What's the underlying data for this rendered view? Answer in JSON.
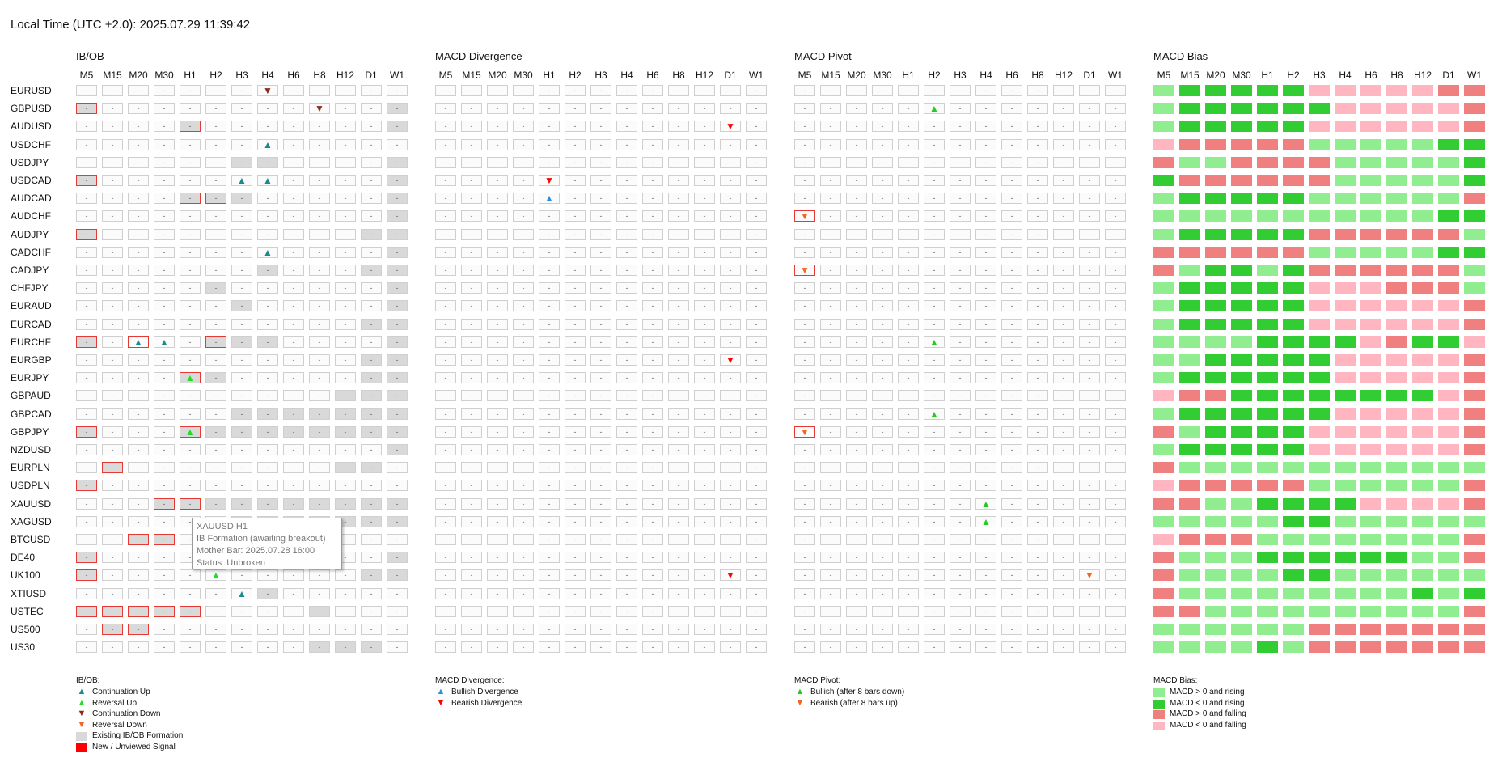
{
  "local_time": "Local Time (UTC +2.0): 2025.07.29 11:39:42",
  "timeframes": [
    "M5",
    "M15",
    "M20",
    "M30",
    "H1",
    "H2",
    "H3",
    "H4",
    "H6",
    "H8",
    "H12",
    "D1",
    "W1"
  ],
  "symbols": [
    "EURUSD",
    "GBPUSD",
    "AUDUSD",
    "USDCHF",
    "USDJPY",
    "USDCAD",
    "AUDCAD",
    "AUDCHF",
    "AUDJPY",
    "CADCHF",
    "CADJPY",
    "CHFJPY",
    "EURAUD",
    "EURCAD",
    "EURCHF",
    "EURGBP",
    "EURJPY",
    "GBPAUD",
    "GBPCAD",
    "GBPJPY",
    "NZDUSD",
    "EURPLN",
    "USDPLN",
    "XAUUSD",
    "XAGUSD",
    "BTCUSD",
    "DE40",
    "UK100",
    "XTIUSD",
    "USTEC",
    "US500",
    "US30"
  ],
  "colors": {
    "continuation_up": "#1a8a8a",
    "reversal_up": "#22dd22",
    "continuation_down": "#8b2a1f",
    "reversal_down": "#f26522",
    "bullish_divergence": "#2a8fe0",
    "bearish_divergence": "#ff0000",
    "pivot_bullish": "#22cc22",
    "pivot_bearish": "#f26522",
    "existing_formation": "#d9d9d9",
    "new_signal": "#ff0000",
    "bias_above_rising": "#90ee90",
    "bias_below_rising": "#32cd32",
    "bias_above_falling": "#f08080",
    "bias_below_falling": "#ffb6c1"
  },
  "panels": {
    "ibob": {
      "title": "IB/OB",
      "gray": [
        "1:0",
        "1:12",
        "2:4",
        "2:12",
        "4:6",
        "4:7",
        "4:12",
        "5:0",
        "5:12",
        "6:4",
        "6:5",
        "6:6",
        "6:12",
        "7:12",
        "8:0",
        "8:11",
        "8:12",
        "9:12",
        "10:7",
        "10:11",
        "10:12",
        "11:5",
        "11:12",
        "12:6",
        "12:12",
        "13:11",
        "13:12",
        "14:0",
        "14:5",
        "14:6",
        "14:7",
        "14:12",
        "15:11",
        "15:12",
        "16:4",
        "16:5",
        "16:11",
        "16:12",
        "17:10",
        "17:11",
        "17:12",
        "18:6",
        "18:7",
        "18:8",
        "18:9",
        "18:10",
        "18:11",
        "18:12",
        "19:0",
        "19:4",
        "19:5",
        "19:6",
        "19:7",
        "19:8",
        "19:9",
        "19:10",
        "19:11",
        "19:12",
        "20:12",
        "21:1",
        "21:10",
        "21:11",
        "22:0",
        "23:3",
        "23:4",
        "23:5",
        "23:6",
        "23:7",
        "23:8",
        "23:9",
        "23:10",
        "23:11",
        "23:12",
        "24:6",
        "24:7",
        "24:8",
        "24:9",
        "24:10",
        "24:11",
        "24:12",
        "25:2",
        "25:3",
        "26:0",
        "26:12",
        "27:0",
        "27:11",
        "27:12",
        "28:7",
        "29:0",
        "29:1",
        "29:2",
        "29:3",
        "29:4",
        "29:9",
        "30:1",
        "30:2",
        "31:9",
        "31:10",
        "31:11"
      ],
      "outline": [
        "1:0",
        "2:4",
        "5:0",
        "6:4",
        "6:5",
        "8:0",
        "14:0",
        "14:2",
        "14:5",
        "16:4",
        "19:0",
        "19:4",
        "21:1",
        "22:0",
        "23:3",
        "23:4",
        "25:2",
        "25:3",
        "26:0",
        "27:0",
        "29:0",
        "29:1",
        "29:2",
        "29:3",
        "29:4",
        "30:1",
        "30:2"
      ],
      "arrows": [
        {
          "cell": "0:7",
          "glyph": "▼",
          "kind": "continuation_down"
        },
        {
          "cell": "1:9",
          "glyph": "▼",
          "kind": "continuation_down"
        },
        {
          "cell": "3:7",
          "glyph": "▲",
          "kind": "continuation_up"
        },
        {
          "cell": "5:6",
          "glyph": "▲",
          "kind": "continuation_up"
        },
        {
          "cell": "5:7",
          "glyph": "▲",
          "kind": "continuation_up"
        },
        {
          "cell": "9:7",
          "glyph": "▲",
          "kind": "continuation_up"
        },
        {
          "cell": "14:2",
          "glyph": "▲",
          "kind": "continuation_up"
        },
        {
          "cell": "14:3",
          "glyph": "▲",
          "kind": "continuation_up"
        },
        {
          "cell": "16:4",
          "glyph": "▲",
          "kind": "reversal_up"
        },
        {
          "cell": "19:4",
          "glyph": "▲",
          "kind": "reversal_up"
        },
        {
          "cell": "27:5",
          "glyph": "▲",
          "kind": "reversal_up"
        },
        {
          "cell": "28:6",
          "glyph": "▲",
          "kind": "continuation_up"
        }
      ]
    },
    "divergence": {
      "title": "MACD Divergence",
      "arrows": [
        {
          "cell": "2:11",
          "glyph": "▼",
          "kind": "bearish_divergence"
        },
        {
          "cell": "5:4",
          "glyph": "▼",
          "kind": "bearish_divergence"
        },
        {
          "cell": "6:4",
          "glyph": "▲",
          "kind": "bullish_divergence"
        },
        {
          "cell": "15:11",
          "glyph": "▼",
          "kind": "bearish_divergence"
        },
        {
          "cell": "27:11",
          "glyph": "▼",
          "kind": "bearish_divergence"
        }
      ]
    },
    "pivot": {
      "title": "MACD Pivot",
      "outline": [
        "7:0",
        "10:0",
        "19:0"
      ],
      "arrows": [
        {
          "cell": "1:5",
          "glyph": "▲",
          "kind": "pivot_bullish"
        },
        {
          "cell": "7:0",
          "glyph": "▼",
          "kind": "pivot_bearish"
        },
        {
          "cell": "10:0",
          "glyph": "▼",
          "kind": "pivot_bearish"
        },
        {
          "cell": "14:5",
          "glyph": "▲",
          "kind": "pivot_bullish"
        },
        {
          "cell": "18:5",
          "glyph": "▲",
          "kind": "pivot_bullish"
        },
        {
          "cell": "19:0",
          "glyph": "▼",
          "kind": "pivot_bearish"
        },
        {
          "cell": "23:7",
          "glyph": "▲",
          "kind": "pivot_bullish"
        },
        {
          "cell": "24:7",
          "glyph": "▲",
          "kind": "pivot_bullish"
        },
        {
          "cell": "27:11",
          "glyph": "▼",
          "kind": "pivot_bearish"
        }
      ]
    },
    "bias": {
      "title": "MACD Bias",
      "rows": [
        "ADDDDDPPPPPFF",
        "ADDDDDDPPPPPF",
        "ADDDDDPPPPPPF",
        "PFFFFFAAAAADD",
        "FAAFFFFAAAAAD",
        "DFFFFFFAAAAAD",
        "ADDDDDAAAAAAF",
        "AAAAAAAAAAADD",
        "ADDDDDFFFFFFA",
        "FFFFFFAAAAADD",
        "FADDADFFFFFFA",
        "ADDDDDPPPFFFA",
        "ADDDDDPPPPPPF",
        "ADDDDDPPPPPPF",
        "AAAADDDDPFDDP",
        "AADDDDDPPPPPF",
        "ADDDDDDPPPPPF",
        "PFFDDDDDDDDPF",
        "ADDDDDDPPPPPF",
        "FADDDDPPPPPPF",
        "ADDDDDPPPPPPF",
        "FAAAAAAAAAAAA",
        "PFFFFFAAAAAAF",
        "FFAADDDDPPPPF",
        "AAAAADDAAAAAA",
        "PFFFAAAAAAAAF",
        "FAAADDDDDDAAF",
        "FAAAADDAAAAAA",
        "FAAAAAAAAADAD",
        "FFAAAAAAAAAAF",
        "AAAAAAFFFFFFF",
        "AAAADAFFFFFFF"
      ],
      "codes": {
        "A": "bias_above_rising",
        "D": "bias_below_rising",
        "F": "bias_above_falling",
        "P": "bias_below_falling"
      }
    }
  },
  "legends": {
    "ibob": {
      "title": "IB/OB:",
      "items": [
        {
          "label": "Continuation Up",
          "glyph": "▲",
          "kind": "continuation_up"
        },
        {
          "label": "Reversal Up",
          "glyph": "▲",
          "kind": "reversal_up"
        },
        {
          "label": "Continuation Down",
          "glyph": "▼",
          "kind": "continuation_down"
        },
        {
          "label": "Reversal Down",
          "glyph": "▼",
          "kind": "reversal_down"
        },
        {
          "label": "Existing IB/OB Formation",
          "swatch": "existing_formation"
        },
        {
          "label": "New / Unviewed Signal",
          "swatch": "new_signal"
        }
      ]
    },
    "divergence": {
      "title": "MACD Divergence:",
      "items": [
        {
          "label": "Bullish Divergence",
          "glyph": "▲",
          "kind": "bullish_divergence"
        },
        {
          "label": "Bearish Divergence",
          "glyph": "▼",
          "kind": "bearish_divergence"
        }
      ]
    },
    "pivot": {
      "title": "MACD Pivot:",
      "items": [
        {
          "label": "Bullish (after 8 bars down)",
          "glyph": "▲",
          "kind": "pivot_bullish"
        },
        {
          "label": "Bearish (after 8 bars up)",
          "glyph": "▼",
          "kind": "pivot_bearish"
        }
      ]
    },
    "bias": {
      "title": "MACD Bias:",
      "items": [
        {
          "label": "MACD > 0 and rising",
          "swatch": "bias_above_rising"
        },
        {
          "label": "MACD < 0 and rising",
          "swatch": "bias_below_rising"
        },
        {
          "label": "MACD > 0 and falling",
          "swatch": "bias_above_falling"
        },
        {
          "label": "MACD < 0 and falling",
          "swatch": "bias_below_falling"
        }
      ]
    }
  },
  "empty_cell_text": "-",
  "tooltip": {
    "lines": [
      "XAUUSD H1",
      "IB Formation (awaiting breakout)",
      "Mother Bar: 2025.07.28 16:00",
      "Status: Unbroken"
    ]
  }
}
